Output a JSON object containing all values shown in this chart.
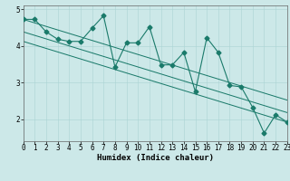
{
  "xlabel": "Humidex (Indice chaleur)",
  "bg_color": "#cce8e8",
  "line_color": "#1a7a6a",
  "x_data": [
    0,
    1,
    2,
    3,
    4,
    5,
    6,
    7,
    8,
    9,
    10,
    11,
    12,
    13,
    14,
    15,
    16,
    17,
    18,
    19,
    20,
    21,
    22,
    23
  ],
  "y_scatter": [
    4.72,
    4.72,
    4.38,
    4.18,
    4.12,
    4.12,
    4.48,
    4.82,
    3.42,
    4.08,
    4.08,
    4.52,
    3.48,
    3.48,
    3.82,
    2.75,
    4.22,
    3.82,
    2.92,
    2.88,
    2.32,
    1.62,
    2.12,
    1.92
  ],
  "trend_lines": [
    {
      "y_start": 4.72,
      "y_end": 2.52
    },
    {
      "y_start": 4.38,
      "y_end": 2.18
    },
    {
      "y_start": 4.12,
      "y_end": 1.92
    }
  ],
  "xlim": [
    0,
    23
  ],
  "ylim": [
    1.4,
    5.1
  ],
  "yticks": [
    2,
    3,
    4,
    5
  ],
  "xticks": [
    0,
    1,
    2,
    3,
    4,
    5,
    6,
    7,
    8,
    9,
    10,
    11,
    12,
    13,
    14,
    15,
    16,
    17,
    18,
    19,
    20,
    21,
    22,
    23
  ],
  "line_width": 0.8,
  "marker": "D",
  "marker_size": 2.5,
  "grid_color": "#aad4d4",
  "tick_fontsize": 5.5,
  "label_fontsize": 6.5,
  "spine_color": "#666666"
}
